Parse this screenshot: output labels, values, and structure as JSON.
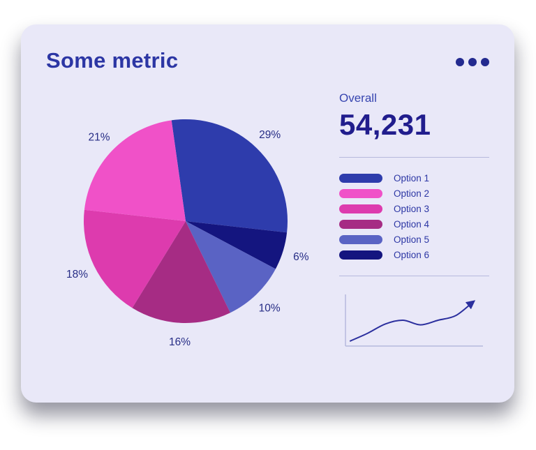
{
  "card": {
    "title": "Some metric",
    "menu_icon": "ellipsis-icon"
  },
  "overall": {
    "label": "Overall",
    "value": "54,231"
  },
  "colors": {
    "card_bg": "#e9e8f8",
    "title_text": "#2c36a4",
    "value_text": "#211d8d",
    "divider": "#b6b9dd",
    "percent_label": "#262c85",
    "sparkline": "#2b2f9e",
    "spark_axis": "#b6b9dd",
    "menu_dots": "#232a8f"
  },
  "legend": [
    {
      "label": "Option 1",
      "color": "#2e3cac"
    },
    {
      "label": "Option 2",
      "color": "#f051c8"
    },
    {
      "label": "Option 3",
      "color": "#dd3bae"
    },
    {
      "label": "Option 4",
      "color": "#a62c84"
    },
    {
      "label": "Option 5",
      "color": "#5a63c4"
    },
    {
      "label": "Option 6",
      "color": "#14157f"
    }
  ],
  "chart_data": [
    {
      "type": "pie",
      "title": "Some metric",
      "start_angle_deg": -8,
      "direction": "clockwise",
      "slices": [
        {
          "label": "Option 1",
          "value": 29,
          "color": "#2e3cac"
        },
        {
          "label": "Option 6",
          "value": 6,
          "color": "#14157f"
        },
        {
          "label": "Option 5",
          "value": 10,
          "color": "#5a63c4"
        },
        {
          "label": "Option 4",
          "value": 16,
          "color": "#a62c84"
        },
        {
          "label": "Option 3",
          "value": 18,
          "color": "#dd3bae"
        },
        {
          "label": "Option 2",
          "value": 21,
          "color": "#f051c8"
        }
      ]
    },
    {
      "type": "line",
      "name": "trend-sparkline",
      "x": [
        0,
        1,
        2,
        3,
        4,
        5,
        6,
        7
      ],
      "y": [
        0.05,
        0.22,
        0.42,
        0.5,
        0.4,
        0.5,
        0.6,
        0.9
      ],
      "arrow_end": true,
      "legend_position": "none"
    }
  ]
}
